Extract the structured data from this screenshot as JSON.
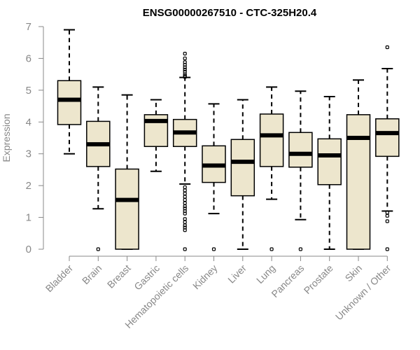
{
  "chart_data": {
    "type": "boxplot",
    "title": "ENSG00000267510 - CTC-325H20.4",
    "xlabel": "",
    "ylabel": "Expression",
    "ylim": [
      0,
      7
    ],
    "yticks": [
      0,
      1,
      2,
      3,
      4,
      5,
      6,
      7
    ],
    "box_color": "#EDE6CD",
    "categories": [
      "Bladder",
      "Brain",
      "Breast",
      "Gastric",
      "Hematopoietic cells",
      "Kidney",
      "Liver",
      "Lung",
      "Pancreas",
      "Prostate",
      "Skin",
      "Unknown / Other"
    ],
    "boxes": [
      {
        "label": "Bladder",
        "whisker_low": 3.0,
        "q1": 3.92,
        "median": 4.7,
        "q3": 5.3,
        "whisker_high": 6.9,
        "outliers": []
      },
      {
        "label": "Brain",
        "whisker_low": 1.27,
        "q1": 2.6,
        "median": 3.3,
        "q3": 4.02,
        "whisker_high": 5.1,
        "outliers": [
          0.0
        ]
      },
      {
        "label": "Breast",
        "whisker_low": 0.0,
        "q1": 0.0,
        "median": 1.55,
        "q3": 2.52,
        "whisker_high": 4.85,
        "outliers": []
      },
      {
        "label": "Gastric",
        "whisker_low": 2.45,
        "q1": 3.23,
        "median": 4.03,
        "q3": 4.23,
        "whisker_high": 4.7,
        "outliers": []
      },
      {
        "label": "Hematopoietic cells",
        "whisker_low": 2.05,
        "q1": 3.23,
        "median": 3.67,
        "q3": 4.08,
        "whisker_high": 5.4,
        "outliers": [
          6.15,
          6.0,
          5.88,
          5.8,
          5.72,
          5.65,
          5.58,
          5.5,
          5.45,
          5.42,
          1.95,
          1.85,
          1.75,
          1.65,
          1.55,
          1.45,
          1.35,
          1.28,
          1.2,
          1.12,
          0.95,
          0.85,
          0.75,
          0.68,
          0.6,
          0.0
        ]
      },
      {
        "label": "Kidney",
        "whisker_low": 1.12,
        "q1": 2.1,
        "median": 2.63,
        "q3": 3.25,
        "whisker_high": 4.57,
        "outliers": [
          0.0
        ]
      },
      {
        "label": "Liver",
        "whisker_low": 0.0,
        "q1": 1.68,
        "median": 2.75,
        "q3": 3.45,
        "whisker_high": 4.7,
        "outliers": []
      },
      {
        "label": "Lung",
        "whisker_low": 1.57,
        "q1": 2.6,
        "median": 3.58,
        "q3": 4.25,
        "whisker_high": 5.1,
        "outliers": [
          0.0
        ]
      },
      {
        "label": "Pancreas",
        "whisker_low": 0.93,
        "q1": 2.58,
        "median": 3.0,
        "q3": 3.67,
        "whisker_high": 4.97,
        "outliers": [
          0.0
        ]
      },
      {
        "label": "Prostate",
        "whisker_low": 0.0,
        "q1": 2.03,
        "median": 2.95,
        "q3": 3.47,
        "whisker_high": 4.8,
        "outliers": []
      },
      {
        "label": "Skin",
        "whisker_low": 0.0,
        "q1": 0.0,
        "median": 3.5,
        "q3": 4.23,
        "whisker_high": 5.32,
        "outliers": []
      },
      {
        "label": "Unknown / Other",
        "whisker_low": 1.2,
        "q1": 2.92,
        "median": 3.65,
        "q3": 4.1,
        "whisker_high": 5.68,
        "outliers": [
          6.35,
          1.15,
          1.05,
          0.88,
          0.0
        ]
      }
    ]
  }
}
